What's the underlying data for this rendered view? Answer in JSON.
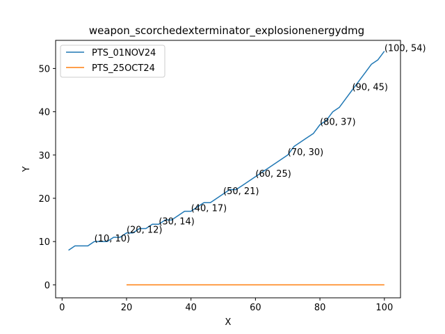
{
  "chart_data": {
    "type": "line",
    "title": "weapon_scorchedexterminator_explosionenergydmg",
    "xlabel": "X",
    "ylabel": "Y",
    "xlim": [
      -2,
      105
    ],
    "ylim": [
      -3,
      56.5
    ],
    "xticks": [
      0,
      20,
      40,
      60,
      80,
      100
    ],
    "yticks": [
      0,
      10,
      20,
      30,
      40,
      50
    ],
    "legend_position": "top-left",
    "series": [
      {
        "name": "PTS_01NOV24",
        "color": "#1f77b4",
        "x": [
          2,
          4,
          6,
          8,
          10,
          12,
          14,
          16,
          18,
          20,
          22,
          24,
          26,
          28,
          30,
          32,
          34,
          36,
          38,
          40,
          42,
          44,
          46,
          48,
          50,
          52,
          54,
          56,
          58,
          60,
          62,
          64,
          66,
          68,
          70,
          72,
          74,
          76,
          78,
          80,
          82,
          84,
          86,
          88,
          90,
          92,
          94,
          96,
          98,
          100
        ],
        "y": [
          8,
          9,
          9,
          9,
          10,
          10,
          10,
          11,
          11,
          12,
          12,
          13,
          13,
          14,
          14,
          15,
          15,
          16,
          17,
          17,
          18,
          19,
          19,
          20,
          21,
          22,
          22,
          23,
          24,
          25,
          26,
          27,
          28,
          29,
          30,
          32,
          33,
          34,
          35,
          37,
          38,
          40,
          41,
          43,
          45,
          47,
          49,
          51,
          52,
          54
        ]
      },
      {
        "name": "PTS_25OCT24",
        "color": "#ff7f0e",
        "x": [
          20,
          100
        ],
        "y": [
          0,
          0
        ]
      }
    ],
    "annotations": [
      {
        "x": 10,
        "y": 10,
        "text": "(10, 10)"
      },
      {
        "x": 20,
        "y": 12,
        "text": "(20, 12)"
      },
      {
        "x": 30,
        "y": 14,
        "text": "(30, 14)"
      },
      {
        "x": 40,
        "y": 17,
        "text": "(40, 17)"
      },
      {
        "x": 50,
        "y": 21,
        "text": "(50, 21)"
      },
      {
        "x": 60,
        "y": 25,
        "text": "(60, 25)"
      },
      {
        "x": 70,
        "y": 30,
        "text": "(70, 30)"
      },
      {
        "x": 80,
        "y": 37,
        "text": "(80, 37)"
      },
      {
        "x": 90,
        "y": 45,
        "text": "(90, 45)"
      },
      {
        "x": 100,
        "y": 54,
        "text": "(100, 54)"
      }
    ]
  }
}
